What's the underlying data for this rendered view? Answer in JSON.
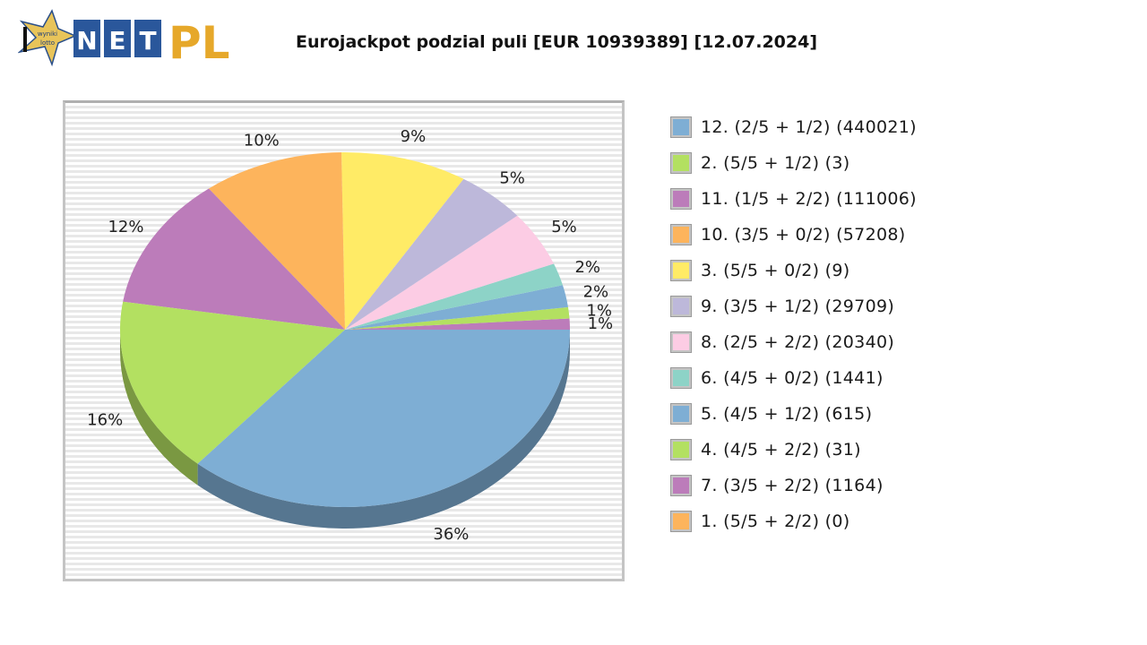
{
  "header": {
    "logo": {
      "badge_line1": "wyniki",
      "badge_line2": "lotto",
      "letters": [
        "N",
        "E",
        "T"
      ],
      "suffix": "PL",
      "icon": "star-icon"
    },
    "title": "Eurojackpot podzial puli [EUR 10939389] [12.07.2024]"
  },
  "chart_data": {
    "type": "pie",
    "title": "Eurojackpot podzial puli [EUR 10939389] [12.07.2024]",
    "style": "3d-pie, striped background, legend right",
    "legend_position": "right",
    "slices": [
      {
        "label": "12. (2/5 + 1/2) (440021)",
        "tier": 12,
        "match": "2/5 + 1/2",
        "winners": 440021,
        "percent": 36,
        "color": "#7eaed4"
      },
      {
        "label": "2. (5/5 + 1/2) (3)",
        "tier": 2,
        "match": "5/5 + 1/2",
        "winners": 3,
        "percent": 16,
        "color": "#b3e061"
      },
      {
        "label": "11. (1/5 + 2/2) (111006)",
        "tier": 11,
        "match": "1/5 + 2/2",
        "winners": 111006,
        "percent": 12,
        "color": "#bc7cba"
      },
      {
        "label": "10. (3/5 + 0/2) (57208)",
        "tier": 10,
        "match": "3/5 + 0/2",
        "winners": 57208,
        "percent": 10,
        "color": "#fdb45c"
      },
      {
        "label": "3. (5/5 + 0/2) (9)",
        "tier": 3,
        "match": "5/5 + 0/2",
        "winners": 9,
        "percent": 9,
        "color": "#ffeb66"
      },
      {
        "label": "9. (3/5 + 1/2) (29709)",
        "tier": 9,
        "match": "3/5 + 1/2",
        "winners": 29709,
        "percent": 5,
        "color": "#bdb8da"
      },
      {
        "label": "8. (2/5 + 2/2) (20340)",
        "tier": 8,
        "match": "2/5 + 2/2",
        "winners": 20340,
        "percent": 5,
        "color": "#fccce4"
      },
      {
        "label": "6. (4/5 + 0/2) (1441)",
        "tier": 6,
        "match": "4/5 + 0/2",
        "winners": 1441,
        "percent": 2,
        "color": "#8dd3c7"
      },
      {
        "label": "5. (4/5 + 1/2) (615)",
        "tier": 5,
        "match": "4/5 + 1/2",
        "winners": 615,
        "percent": 2,
        "color": "#7eaed4"
      },
      {
        "label": "4. (4/5 + 2/2) (31)",
        "tier": 4,
        "match": "4/5 + 2/2",
        "winners": 31,
        "percent": 1,
        "color": "#b3e061"
      },
      {
        "label": "7. (3/5 + 2/2) (1164)",
        "tier": 7,
        "match": "3/5 + 2/2",
        "winners": 1164,
        "percent": 1,
        "color": "#bc7cba"
      },
      {
        "label": "1. (5/5 + 2/2) (0)",
        "tier": 1,
        "match": "5/5 + 2/2",
        "winners": 0,
        "percent": 0,
        "color": "#fdb45c"
      }
    ],
    "pie_labels": [
      "36%",
      "16%",
      "12%",
      "10%",
      "9%",
      "5%",
      "5%",
      "2%",
      "2%",
      "1%",
      "1%"
    ]
  }
}
